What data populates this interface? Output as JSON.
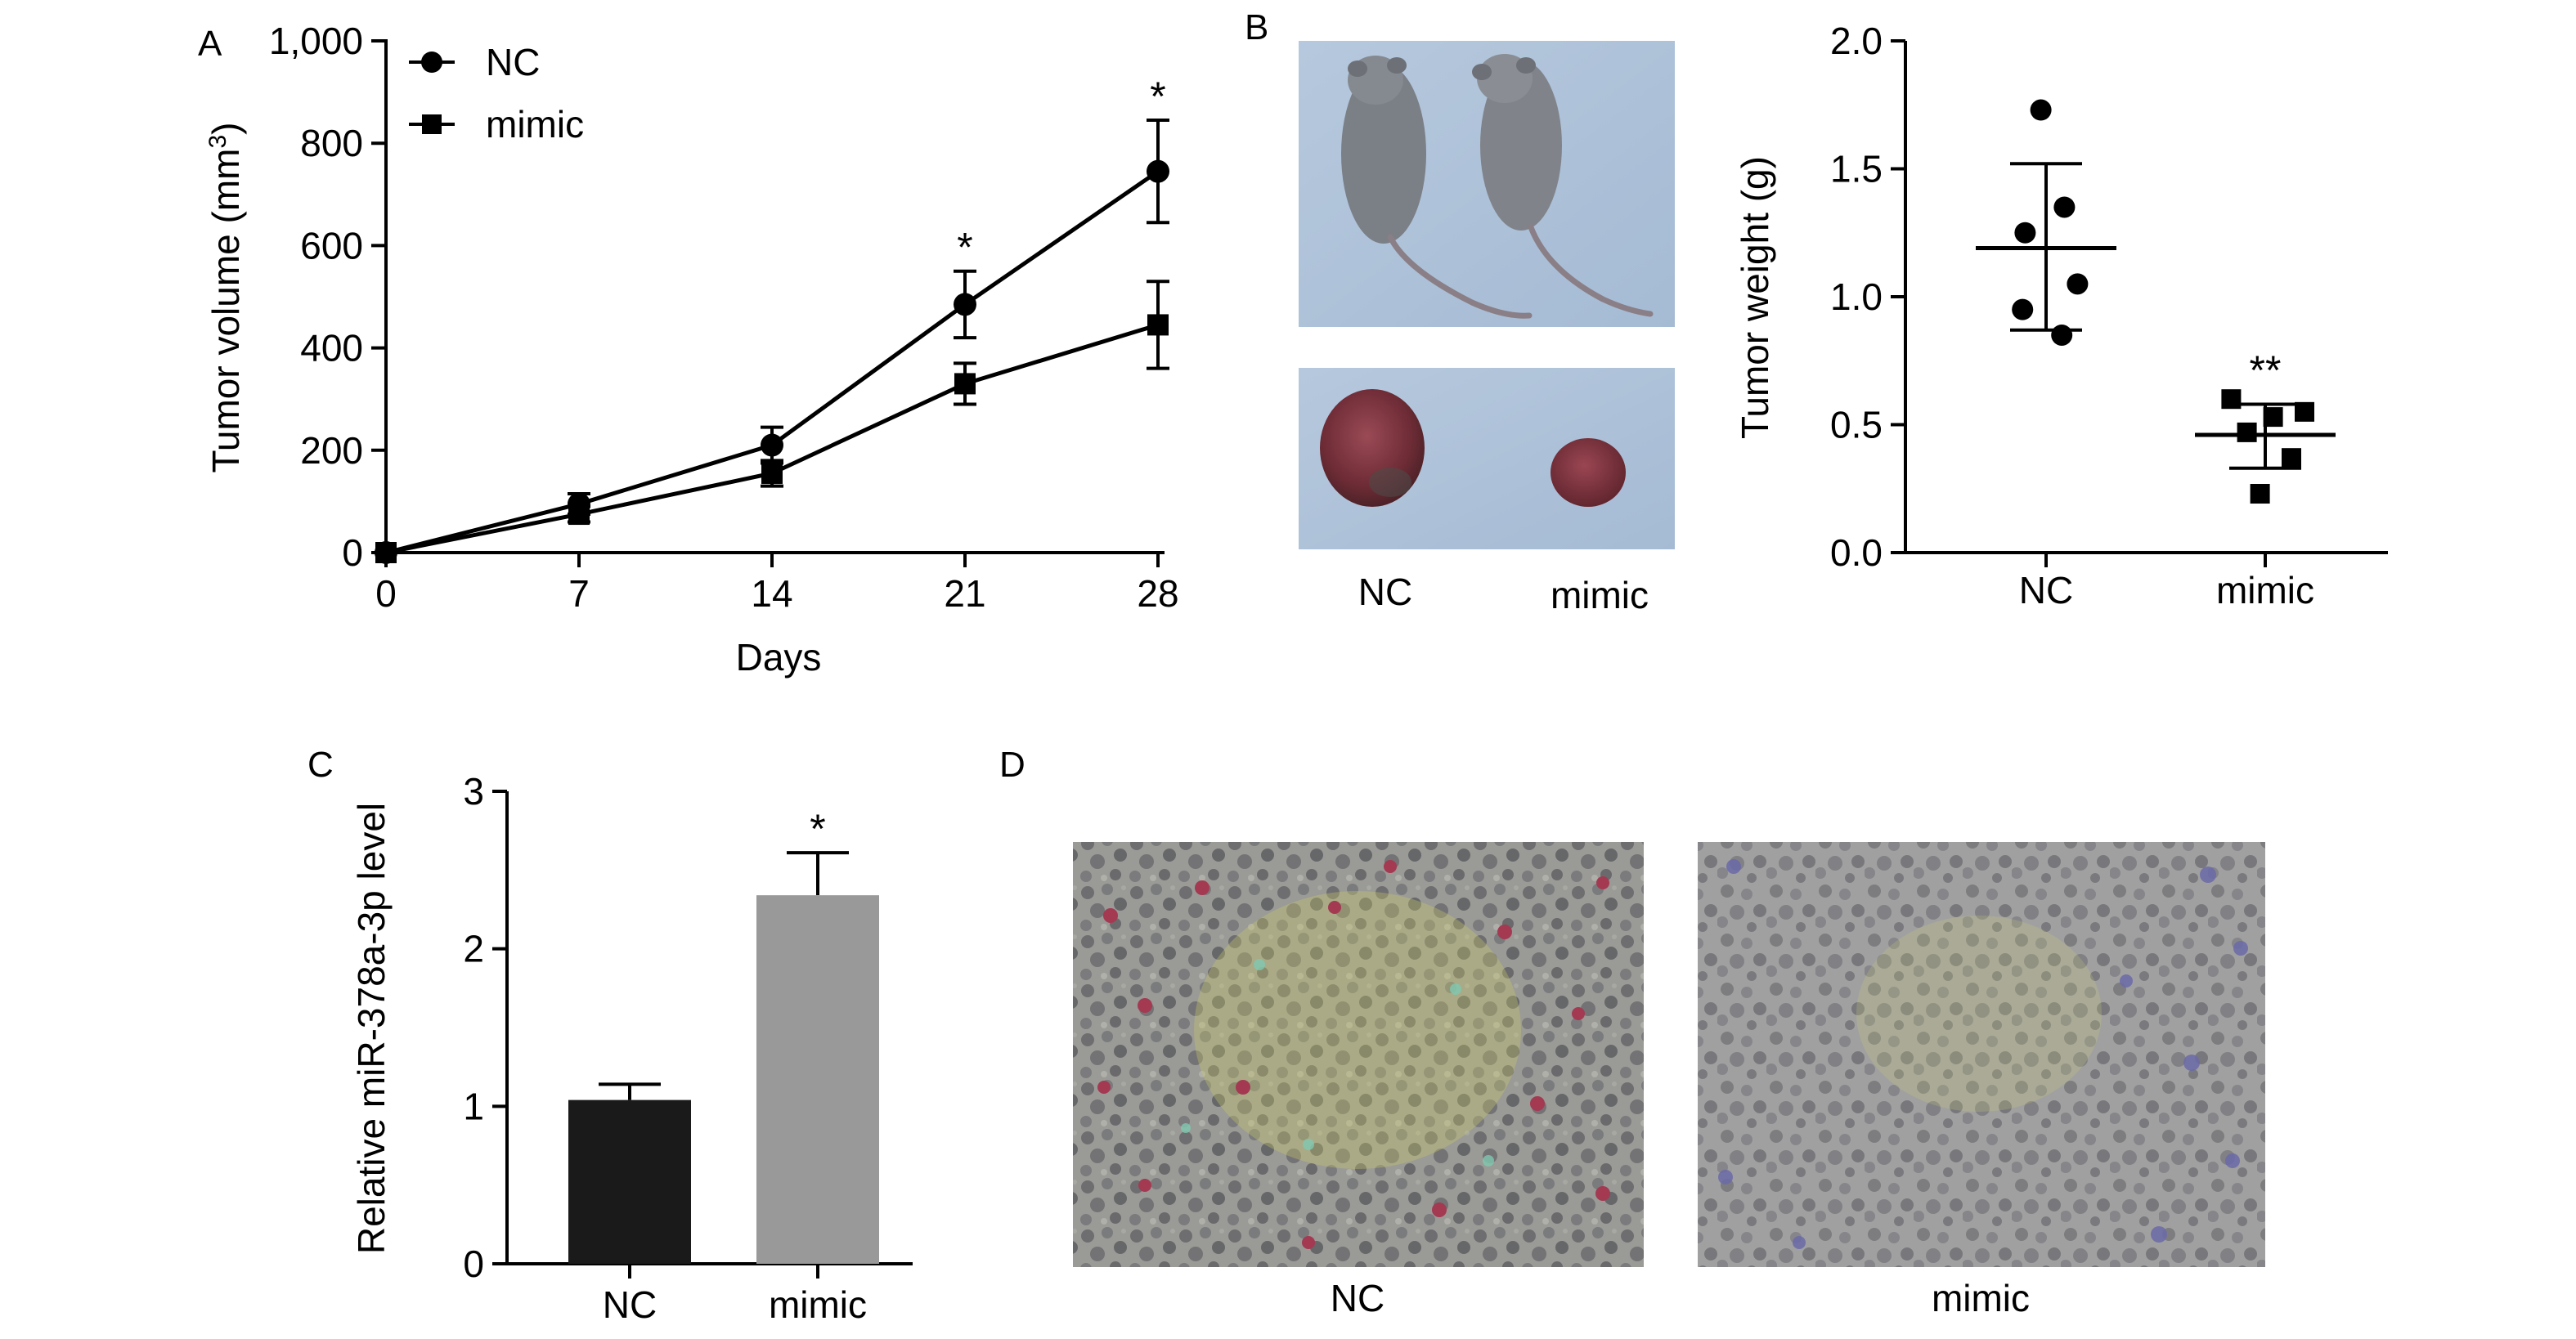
{
  "figure": {
    "panel_labels": [
      "A",
      "B",
      "C",
      "D"
    ]
  },
  "chart_data": [
    {
      "id": "A",
      "type": "line",
      "title": "",
      "xlabel": "Days",
      "ylabel": "Tumor volume (mm",
      "ylabel_sup": "3",
      "ylabel_end": ")",
      "x": [
        0,
        7,
        14,
        21,
        28
      ],
      "x_tick_labels": [
        "0",
        "7",
        "14",
        "21",
        "28"
      ],
      "ylim": [
        0,
        1000
      ],
      "y_ticks": [
        0,
        200,
        400,
        600,
        800,
        1000
      ],
      "y_tick_labels": [
        "0",
        "200",
        "400",
        "600",
        "800",
        "1,000"
      ],
      "series": [
        {
          "name": "NC",
          "marker": "circle",
          "values": [
            0,
            95,
            210,
            485,
            745
          ],
          "errors": [
            0,
            20,
            35,
            65,
            100
          ]
        },
        {
          "name": "mimic",
          "marker": "square",
          "values": [
            0,
            75,
            155,
            330,
            445
          ],
          "errors": [
            0,
            15,
            25,
            40,
            85
          ]
        }
      ],
      "annotations": [
        {
          "x": 21,
          "text": "*"
        },
        {
          "x": 28,
          "text": "*"
        }
      ],
      "legend_position": "top-left"
    },
    {
      "id": "B-scatter",
      "type": "scatter",
      "title": "",
      "xlabel": "",
      "ylabel": "Tumor weight (g)",
      "categories": [
        "NC",
        "mimic"
      ],
      "ylim": [
        0,
        2.0
      ],
      "y_ticks": [
        0,
        0.5,
        1.0,
        1.5,
        2.0
      ],
      "y_tick_labels": [
        "0.0",
        "0.5",
        "1.0",
        "1.5",
        "2.0"
      ],
      "groups": [
        {
          "name": "NC",
          "marker": "circle",
          "points": [
            1.73,
            1.35,
            1.25,
            1.05,
            0.95,
            0.85
          ],
          "mean": 1.19,
          "sd_upper": 1.52,
          "sd_lower": 0.87
        },
        {
          "name": "mimic",
          "marker": "square",
          "points": [
            0.6,
            0.55,
            0.53,
            0.47,
            0.37,
            0.23
          ],
          "mean": 0.46,
          "sd_upper": 0.58,
          "sd_lower": 0.33
        }
      ],
      "annotations": [
        {
          "category": "mimic",
          "text": "**"
        }
      ]
    },
    {
      "id": "C",
      "type": "bar",
      "title": "",
      "xlabel": "",
      "ylabel": "Relative miR-378a-3p level",
      "categories": [
        "NC",
        "mimic"
      ],
      "values": [
        1.04,
        2.34
      ],
      "errors": [
        0.1,
        0.27
      ],
      "colors": [
        "#1a1a1a",
        "#999999"
      ],
      "ylim": [
        0,
        3
      ],
      "y_ticks": [
        0,
        1,
        2,
        3
      ],
      "y_tick_labels": [
        "0",
        "1",
        "2",
        "3"
      ],
      "annotations": [
        {
          "category": "mimic",
          "text": "*"
        }
      ]
    }
  ],
  "panel_B_photos": {
    "labels": [
      "NC",
      "mimic"
    ]
  },
  "panel_D_histology": {
    "labels": [
      "NC",
      "mimic"
    ]
  }
}
